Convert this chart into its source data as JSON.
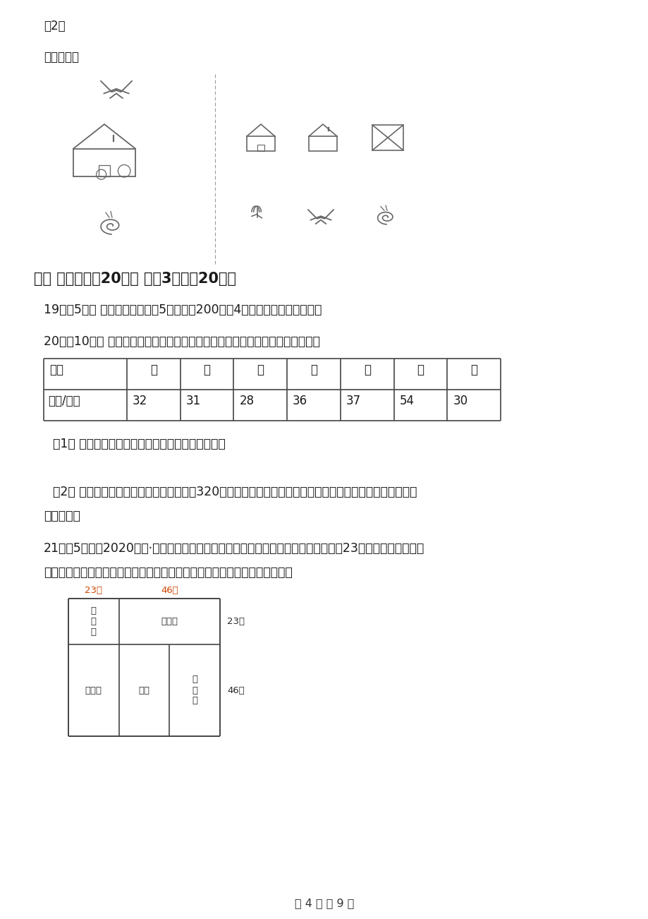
{
  "bg_color": "#ffffff",
  "text_color": "#1a1a1a",
  "q2_label": "（2）",
  "lianxian_label": "连线匹配。",
  "section_title": "六、 解决问题（20分） （共3题；共20分）",
  "q19": "19．（5分） 每块地的小树苗有5行，每行200棵，4块地共有小树苗多少棵？",
  "q20_intro": "20．（10分） 奇思家买了辆小汽车，奇思连续记录了这一周每天行驶的里程数。",
  "table_headers": [
    "星期",
    "一",
    "二",
    "三",
    "四",
    "五",
    "六",
    "日"
  ],
  "table_row2_label": "里程/千米",
  "table_values": [
    "32",
    "31",
    "28",
    "36",
    "37",
    "54",
    "30"
  ],
  "q20_1": "（1） 奇思家的小汽车这一周一共行驶了多少千米？",
  "q20_2_part1": "（2） 星期一早上出发时里程表上的读数是320千米，算一算，奇思家的小汽车星期日晚上到家时里程表的读",
  "q20_2_part2": "数是多少？",
  "q21_intro": "21．（5分）（2020三上·余杭期末）下面是李爷爷的农场平面图，中间是一个边长为23米的正方形水塘。要",
  "q21_intro2": "把每个饲养区都围上木栅栏，一共需要多长的栅栏？（水塘四周也要围栅栏）",
  "farm_label_23m_top": "23米",
  "farm_label_46m_top": "46米",
  "farm_label_23m_right": "23米",
  "farm_label_46m_right": "46米",
  "page_footer": "第 4 页 共 9 页"
}
